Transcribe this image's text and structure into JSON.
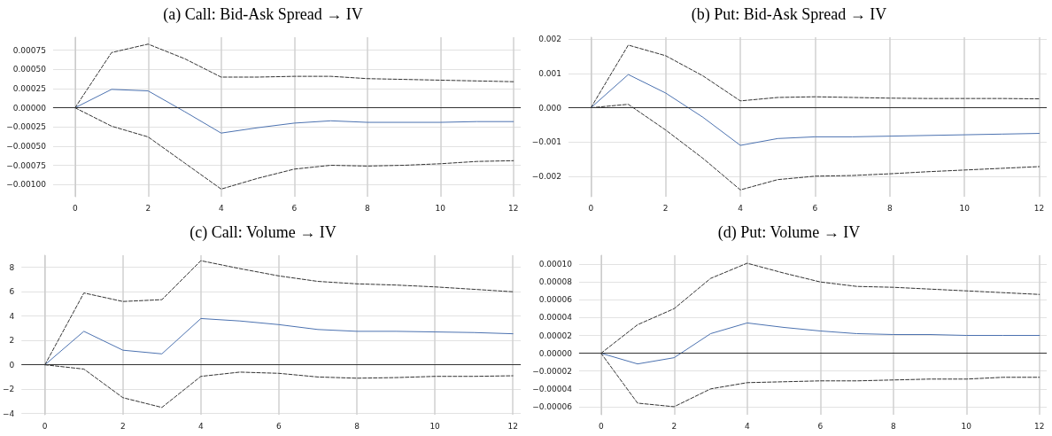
{
  "chart_data": [
    {
      "type": "line",
      "title": "(a) Call: Bid-Ask Spread → IV",
      "x": [
        0,
        1,
        2,
        3,
        4,
        5,
        6,
        7,
        8,
        9,
        10,
        11,
        12
      ],
      "xlim": [
        -0.6,
        12.2
      ],
      "xticks": [
        0,
        2,
        4,
        6,
        8,
        10,
        12
      ],
      "ylim": [
        -0.00116,
        0.00092
      ],
      "yticks": [
        {
          "value": -0.001,
          "label": "−0.00100"
        },
        {
          "value": -0.00075,
          "label": "−0.00075"
        },
        {
          "value": -0.0005,
          "label": "−0.00050"
        },
        {
          "value": -0.00025,
          "label": "−0.00025"
        },
        {
          "value": 0,
          "label": "0.00000"
        },
        {
          "value": 0.00025,
          "label": "0.00025"
        },
        {
          "value": 0.0005,
          "label": "0.00050"
        },
        {
          "value": 0.00075,
          "label": "0.00075"
        }
      ],
      "grid": true,
      "marker": "none",
      "ref_lines": [
        {
          "axis": "y",
          "value": 0,
          "color": "#333333",
          "line_style": "solid"
        }
      ],
      "series": [
        {
          "color": "#4c72b0",
          "line_style": "solid",
          "values": [
            0,
            0.00024,
            0.00022,
            -5e-05,
            -0.00033,
            -0.00026,
            -0.0002,
            -0.00017,
            -0.00019,
            -0.00019,
            -0.00019,
            -0.00018,
            -0.00018
          ]
        },
        {
          "color": "#333333",
          "line_style": "dashed",
          "values": [
            0,
            0.00072,
            0.00083,
            0.00064,
            0.0004,
            0.0004,
            0.00041,
            0.00041,
            0.00038,
            0.00037,
            0.00036,
            0.00035,
            0.00034
          ]
        },
        {
          "color": "#333333",
          "line_style": "dashed",
          "values": [
            0,
            -0.00024,
            -0.00038,
            -0.00072,
            -0.00106,
            -0.00092,
            -0.0008,
            -0.00075,
            -0.00076,
            -0.00075,
            -0.00073,
            -0.0007,
            -0.00069
          ]
        }
      ]
    },
    {
      "type": "line",
      "title": "(b) Put: Bid-Ask Spread → IV",
      "x": [
        0,
        1,
        2,
        3,
        4,
        5,
        6,
        7,
        8,
        9,
        10,
        11,
        12
      ],
      "xlim": [
        -0.6,
        12.2
      ],
      "xticks": [
        0,
        2,
        4,
        6,
        8,
        10,
        12
      ],
      "ylim": [
        -0.0026,
        0.00206
      ],
      "yticks": [
        {
          "value": -0.002,
          "label": "−0.002"
        },
        {
          "value": -0.001,
          "label": "−0.001"
        },
        {
          "value": 0,
          "label": "0.000"
        },
        {
          "value": 0.001,
          "label": "0.001"
        },
        {
          "value": 0.002,
          "label": "0.002"
        }
      ],
      "grid": true,
      "marker": "none",
      "ref_lines": [
        {
          "axis": "y",
          "value": 0,
          "color": "#333333",
          "line_style": "solid"
        }
      ],
      "series": [
        {
          "color": "#4c72b0",
          "line_style": "solid",
          "values": [
            0,
            0.00097,
            0.00043,
            -0.00028,
            -0.0011,
            -0.0009,
            -0.00085,
            -0.00085,
            -0.00083,
            -0.00081,
            -0.00079,
            -0.00077,
            -0.00075
          ]
        },
        {
          "color": "#333333",
          "line_style": "dashed",
          "values": [
            0,
            0.00183,
            0.00152,
            0.00093,
            0.0002,
            0.0003,
            0.00032,
            0.0003,
            0.00028,
            0.00027,
            0.00027,
            0.00027,
            0.00026
          ]
        },
        {
          "color": "#333333",
          "line_style": "dashed",
          "values": [
            0,
            0.0001,
            -0.00065,
            -0.00148,
            -0.0024,
            -0.0021,
            -0.002,
            -0.00198,
            -0.00193,
            -0.00187,
            -0.00182,
            -0.00177,
            -0.00172
          ]
        }
      ]
    },
    {
      "type": "line",
      "title": "(c) Call: Volume → IV",
      "x": [
        0,
        1,
        2,
        3,
        4,
        5,
        6,
        7,
        8,
        9,
        10,
        11,
        12
      ],
      "xlim": [
        -0.6,
        12.2
      ],
      "xticks": [
        0,
        2,
        4,
        6,
        8,
        10,
        12
      ],
      "ylim": [
        -4.1,
        9
      ],
      "yticks": [
        {
          "value": -4,
          "label": "−4"
        },
        {
          "value": -2,
          "label": "−2"
        },
        0,
        2,
        4,
        6,
        8
      ],
      "grid": true,
      "marker": "none",
      "ref_lines": [
        {
          "axis": "y",
          "value": 0,
          "color": "#333333",
          "line_style": "solid"
        }
      ],
      "series": [
        {
          "color": "#4c72b0",
          "line_style": "solid",
          "values": [
            0,
            2.75,
            1.2,
            0.9,
            3.8,
            3.6,
            3.3,
            2.9,
            2.75,
            2.75,
            2.7,
            2.65,
            2.55
          ]
        },
        {
          "color": "#333333",
          "line_style": "dashed",
          "values": [
            0,
            5.9,
            5.2,
            5.35,
            8.55,
            7.9,
            7.3,
            6.85,
            6.65,
            6.55,
            6.4,
            6.2,
            6.0
          ]
        },
        {
          "color": "#333333",
          "line_style": "dashed",
          "values": [
            0,
            -0.35,
            -2.7,
            -3.5,
            -0.95,
            -0.6,
            -0.7,
            -1.0,
            -1.1,
            -1.05,
            -0.95,
            -0.95,
            -0.9
          ]
        }
      ]
    },
    {
      "type": "line",
      "title": "(d) Put: Volume → IV",
      "x": [
        0,
        1,
        2,
        3,
        4,
        5,
        6,
        7,
        8,
        9,
        10,
        11,
        12
      ],
      "xlim": [
        -0.6,
        12.2
      ],
      "xticks": [
        0,
        2,
        4,
        6,
        8,
        10,
        12
      ],
      "ylim": [
        -6.9e-05,
        0.00011
      ],
      "yticks": [
        {
          "value": -6e-05,
          "label": "−0.00006"
        },
        {
          "value": -4e-05,
          "label": "−0.00004"
        },
        {
          "value": -2e-05,
          "label": "−0.00002"
        },
        {
          "value": 0,
          "label": "0.00000"
        },
        {
          "value": 2e-05,
          "label": "0.00002"
        },
        {
          "value": 4e-05,
          "label": "0.00004"
        },
        {
          "value": 6e-05,
          "label": "0.00006"
        },
        {
          "value": 8e-05,
          "label": "0.00008"
        },
        {
          "value": 0.0001,
          "label": "0.00010"
        }
      ],
      "grid": true,
      "marker": "none",
      "ref_lines": [
        {
          "axis": "y",
          "value": 0,
          "color": "#333333",
          "line_style": "solid"
        }
      ],
      "series": [
        {
          "color": "#4c72b0",
          "line_style": "solid",
          "values": [
            0,
            -1.2e-05,
            -5e-06,
            2.2e-05,
            3.4e-05,
            2.9e-05,
            2.5e-05,
            2.2e-05,
            2.1e-05,
            2.1e-05,
            2e-05,
            2e-05,
            2e-05
          ]
        },
        {
          "color": "#333333",
          "line_style": "dashed",
          "values": [
            0,
            3.2e-05,
            5e-05,
            8.4e-05,
            0.000101,
            9e-05,
            8e-05,
            7.5e-05,
            7.4e-05,
            7.2e-05,
            7e-05,
            6.8e-05,
            6.6e-05
          ]
        },
        {
          "color": "#333333",
          "line_style": "dashed",
          "values": [
            0,
            -5.6e-05,
            -6e-05,
            -4e-05,
            -3.3e-05,
            -3.2e-05,
            -3.1e-05,
            -3.1e-05,
            -3e-05,
            -2.9e-05,
            -2.9e-05,
            -2.7e-05,
            -2.7e-05
          ]
        }
      ]
    }
  ]
}
